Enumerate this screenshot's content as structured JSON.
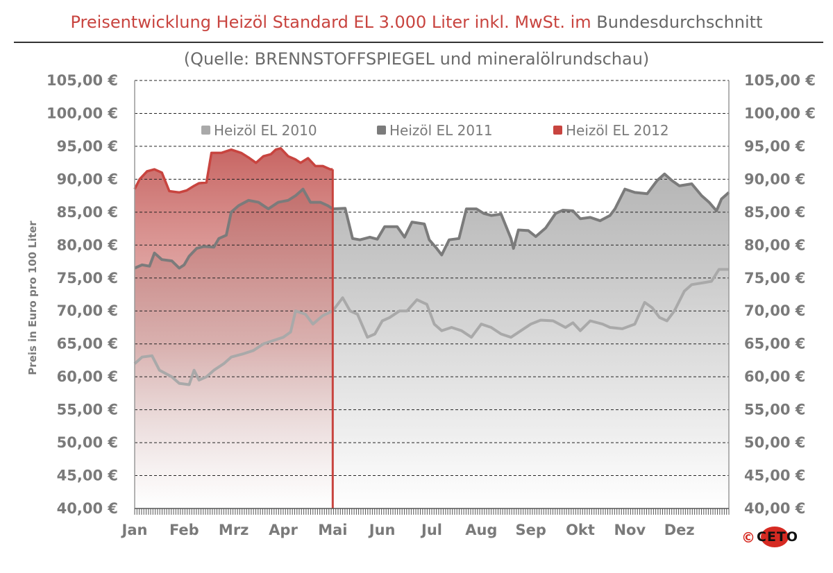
{
  "header": {
    "title_colored": "Preisentwicklung Heizöl Standard EL 3.000 Liter inkl. MwSt. im",
    "title_rest": "Bundesdurchschnitt",
    "subtitle": "(Quelle: BRENNSTOFFSPIEGEL  und mineralölrundschau)"
  },
  "copyright": {
    "symbol": "©",
    "logo_text": "CETO"
  },
  "colors": {
    "title": "#c8443f",
    "s2010": "#a9a9a9",
    "s2011": "#7b7b7b",
    "s2012": "#c8443f",
    "axis_text": "#7a7a7a"
  },
  "chart_data": {
    "type": "area",
    "title": "Preisentwicklung Heizöl Standard EL 3.000 Liter inkl. MwSt. im Bundesdurchschnitt",
    "ylabel": "Preis in Euro pro 100 Liter",
    "xlabel": "",
    "ylim": [
      40,
      105
    ],
    "yticks": [
      105,
      100,
      95,
      90,
      85,
      80,
      75,
      70,
      65,
      60,
      55,
      50,
      45,
      40
    ],
    "ytick_labels": [
      "105,00 €",
      "100,00 €",
      "95,00 €",
      "90,00 €",
      "85,00 €",
      "80,00 €",
      "75,00 €",
      "70,00 €",
      "65,00 €",
      "60,00 €",
      "55,00 €",
      "50,00 €",
      "45,00 €",
      "40,00 €"
    ],
    "months": [
      "Jan",
      "Feb",
      "Mrz",
      "Apr",
      "Mai",
      "Jun",
      "Jul",
      "Aug",
      "Sep",
      "Okt",
      "Nov",
      "Dez"
    ],
    "x_unit": "month (0 = Jan 1, 12 = Dez 31)",
    "legend": [
      "Heizöl EL 2010",
      "Heizöl EL 2011",
      "Heizöl EL 2012"
    ],
    "legend_position": "top",
    "grid": "horizontal dashed",
    "series": [
      {
        "name": "Heizöl EL 2010",
        "points": [
          [
            0,
            62
          ],
          [
            0.15,
            63
          ],
          [
            0.35,
            63.2
          ],
          [
            0.5,
            61
          ],
          [
            0.75,
            60
          ],
          [
            0.9,
            59
          ],
          [
            1.1,
            58.8
          ],
          [
            1.2,
            61
          ],
          [
            1.3,
            59.5
          ],
          [
            1.45,
            60
          ],
          [
            1.6,
            61
          ],
          [
            1.8,
            62
          ],
          [
            1.95,
            63
          ],
          [
            2.2,
            63.5
          ],
          [
            2.4,
            64
          ],
          [
            2.6,
            65
          ],
          [
            2.8,
            65.5
          ],
          [
            3.0,
            66
          ],
          [
            3.15,
            66.8
          ],
          [
            3.25,
            70
          ],
          [
            3.45,
            69.5
          ],
          [
            3.6,
            68
          ],
          [
            3.8,
            69.3
          ],
          [
            4.0,
            70
          ],
          [
            4.2,
            72
          ],
          [
            4.35,
            70
          ],
          [
            4.5,
            69.5
          ],
          [
            4.7,
            66
          ],
          [
            4.85,
            66.5
          ],
          [
            5.0,
            68.5
          ],
          [
            5.15,
            69
          ],
          [
            5.35,
            70
          ],
          [
            5.5,
            70
          ],
          [
            5.7,
            71.7
          ],
          [
            5.9,
            71
          ],
          [
            6.05,
            68
          ],
          [
            6.2,
            67
          ],
          [
            6.4,
            67.5
          ],
          [
            6.6,
            67
          ],
          [
            6.8,
            66
          ],
          [
            7.0,
            68
          ],
          [
            7.2,
            67.5
          ],
          [
            7.4,
            66.5
          ],
          [
            7.6,
            66
          ],
          [
            7.8,
            67
          ],
          [
            8.0,
            68
          ],
          [
            8.2,
            68.6
          ],
          [
            8.45,
            68.5
          ],
          [
            8.7,
            67.5
          ],
          [
            8.85,
            68.2
          ],
          [
            9.0,
            67
          ],
          [
            9.2,
            68.5
          ],
          [
            9.45,
            68
          ],
          [
            9.6,
            67.5
          ],
          [
            9.85,
            67.3
          ],
          [
            10.1,
            68
          ],
          [
            10.3,
            71.3
          ],
          [
            10.45,
            70.5
          ],
          [
            10.6,
            69
          ],
          [
            10.75,
            68.5
          ],
          [
            10.9,
            70
          ],
          [
            11.1,
            73
          ],
          [
            11.25,
            74
          ],
          [
            11.5,
            74.3
          ],
          [
            11.65,
            74.5
          ],
          [
            11.8,
            76.3
          ],
          [
            12,
            76.3
          ]
        ]
      },
      {
        "name": "Heizöl EL 2011",
        "points": [
          [
            0,
            76.5
          ],
          [
            0.15,
            77
          ],
          [
            0.3,
            76.8
          ],
          [
            0.4,
            78.8
          ],
          [
            0.55,
            77.8
          ],
          [
            0.75,
            77.6
          ],
          [
            0.9,
            76.5
          ],
          [
            1.0,
            77
          ],
          [
            1.1,
            78.3
          ],
          [
            1.25,
            79.5
          ],
          [
            1.4,
            79.8
          ],
          [
            1.6,
            79.7
          ],
          [
            1.7,
            81
          ],
          [
            1.85,
            81.5
          ],
          [
            1.95,
            85
          ],
          [
            2.1,
            86
          ],
          [
            2.3,
            86.8
          ],
          [
            2.5,
            86.5
          ],
          [
            2.7,
            85.5
          ],
          [
            2.9,
            86.5
          ],
          [
            3.1,
            86.8
          ],
          [
            3.25,
            87.5
          ],
          [
            3.4,
            88.5
          ],
          [
            3.55,
            86.5
          ],
          [
            3.75,
            86.5
          ],
          [
            3.9,
            86
          ],
          [
            4.0,
            85.5
          ],
          [
            4.25,
            85.6
          ],
          [
            4.4,
            81
          ],
          [
            4.55,
            80.8
          ],
          [
            4.75,
            81.2
          ],
          [
            4.9,
            80.9
          ],
          [
            5.05,
            82.8
          ],
          [
            5.3,
            82.8
          ],
          [
            5.45,
            81.2
          ],
          [
            5.6,
            83.5
          ],
          [
            5.85,
            83.2
          ],
          [
            5.95,
            80.8
          ],
          [
            6.1,
            79.5
          ],
          [
            6.2,
            78.5
          ],
          [
            6.35,
            80.8
          ],
          [
            6.55,
            81
          ],
          [
            6.7,
            85.5
          ],
          [
            6.9,
            85.5
          ],
          [
            7.05,
            84.8
          ],
          [
            7.2,
            84.5
          ],
          [
            7.4,
            84.7
          ],
          [
            7.6,
            81
          ],
          [
            7.65,
            79.5
          ],
          [
            7.75,
            82.3
          ],
          [
            7.95,
            82.2
          ],
          [
            8.1,
            81.3
          ],
          [
            8.3,
            82.6
          ],
          [
            8.5,
            84.8
          ],
          [
            8.65,
            85.3
          ],
          [
            8.85,
            85.2
          ],
          [
            9.0,
            84
          ],
          [
            9.2,
            84.2
          ],
          [
            9.4,
            83.7
          ],
          [
            9.6,
            84.5
          ],
          [
            9.7,
            85.5
          ],
          [
            9.9,
            88.5
          ],
          [
            10.1,
            88
          ],
          [
            10.35,
            87.8
          ],
          [
            10.55,
            89.8
          ],
          [
            10.7,
            90.8
          ],
          [
            10.85,
            89.8
          ],
          [
            11.0,
            89
          ],
          [
            11.25,
            89.3
          ],
          [
            11.45,
            87.5
          ],
          [
            11.6,
            86.5
          ],
          [
            11.75,
            85.2
          ],
          [
            11.85,
            87
          ],
          [
            12,
            88
          ]
        ]
      },
      {
        "name": "Heizöl EL 2012",
        "points": [
          [
            0,
            88.5
          ],
          [
            0.1,
            90
          ],
          [
            0.25,
            91.2
          ],
          [
            0.4,
            91.5
          ],
          [
            0.55,
            91
          ],
          [
            0.7,
            88.2
          ],
          [
            0.9,
            88
          ],
          [
            1.05,
            88.3
          ],
          [
            1.2,
            89
          ],
          [
            1.3,
            89.4
          ],
          [
            1.45,
            89.5
          ],
          [
            1.55,
            94
          ],
          [
            1.75,
            94
          ],
          [
            1.95,
            94.5
          ],
          [
            2.15,
            94
          ],
          [
            2.3,
            93.3
          ],
          [
            2.45,
            92.5
          ],
          [
            2.6,
            93.5
          ],
          [
            2.75,
            93.8
          ],
          [
            2.85,
            94.5
          ],
          [
            2.95,
            94.7
          ],
          [
            3.1,
            93.5
          ],
          [
            3.25,
            93
          ],
          [
            3.35,
            92.5
          ],
          [
            3.5,
            93.2
          ],
          [
            3.65,
            92
          ],
          [
            3.8,
            92
          ],
          [
            3.95,
            91.5
          ],
          [
            4.0,
            91.5
          ]
        ]
      }
    ]
  }
}
